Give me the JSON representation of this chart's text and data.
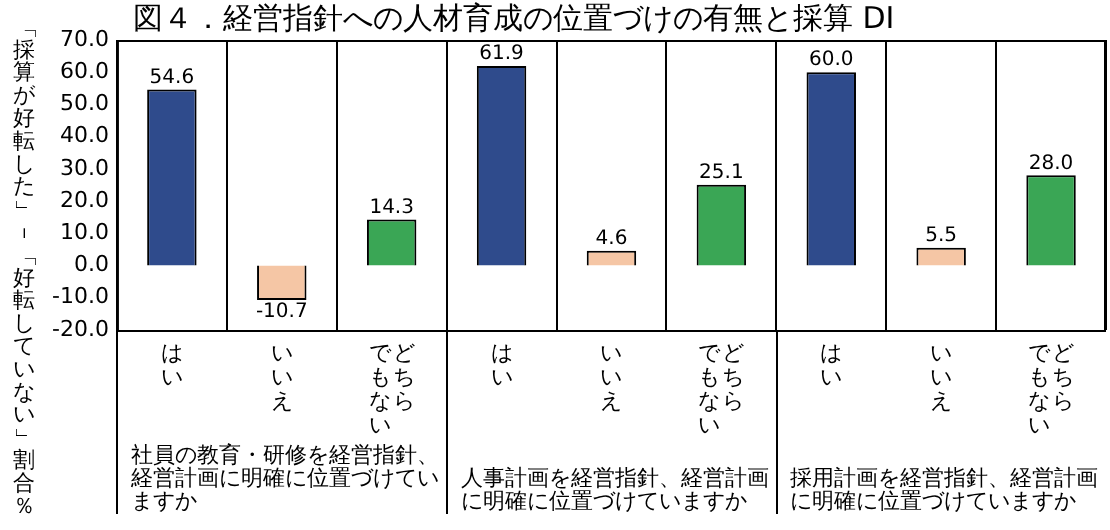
{
  "chart_data": {
    "type": "bar",
    "title": "図４．経営指針への人材育成の位置づけの有無と採算 DI",
    "ylabel": "「採算が好転した」－「好転していない」割合％",
    "categories": [
      "はい",
      "いいえ",
      "どちらでもない",
      "はい",
      "いいえ",
      "どちらでもない",
      "はい",
      "いいえ",
      "どちらでもない"
    ],
    "values": [
      54.6,
      -10.7,
      14.3,
      61.9,
      4.6,
      25.1,
      60.0,
      5.5,
      28.0
    ],
    "colors": [
      "#2f4b8c",
      "#f5c6a5",
      "#3aa655",
      "#2f4b8c",
      "#f5c6a5",
      "#3aa655",
      "#2f4b8c",
      "#f5c6a5",
      "#3aa655"
    ],
    "value_labels": [
      "54.6",
      "-10.7",
      "14.3",
      "61.9",
      "4.6",
      "25.1",
      "60.0",
      "5.5",
      "28.0"
    ],
    "annotations": [
      "社員の教育・研修を経営指針、経営計画に明確に位置づけていますか",
      "人事計画を経営指針、経営計画に明確に位置づけていますか",
      "採用計画を経営指針、経営計画に明確に位置づけていますか"
    ],
    "ylim": [
      -20,
      70
    ],
    "yticks": [
      {
        "value": 70,
        "label": "70.0"
      },
      {
        "value": 60,
        "label": "60.0"
      },
      {
        "value": 50,
        "label": "50.0"
      },
      {
        "value": 40,
        "label": "40.0"
      },
      {
        "value": 30,
        "label": "30.0"
      },
      {
        "value": 20,
        "label": "20.0"
      },
      {
        "value": 10,
        "label": "10.0"
      },
      {
        "value": 0,
        "label": "0.0"
      },
      {
        "value": -10,
        "label": "-10.0"
      },
      {
        "value": -20,
        "label": "-20.0"
      }
    ],
    "grid": "x",
    "legend": false
  }
}
